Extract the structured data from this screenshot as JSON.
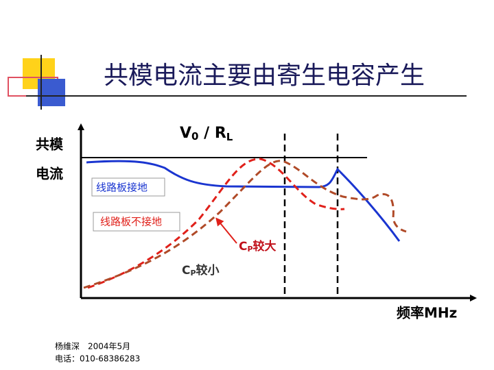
{
  "title": "共模电流主要由寄生电容产生",
  "y_label": [
    "共模",
    "电流"
  ],
  "reference": {
    "main": "V",
    "sub": "0",
    "mid": " / R",
    "sub2": "L"
  },
  "labels": {
    "grounded": "线路板接地",
    "ungrounded": "线路板不接地",
    "cp_large": {
      "main": "C",
      "sub": "P",
      "rest": "较大"
    },
    "cp_small": {
      "main": "C",
      "sub": "P",
      "rest": "较小"
    }
  },
  "x_label": "频率MHz",
  "footer": [
    "杨维深　2004年5月",
    "电话：010-68386283"
  ]
}
